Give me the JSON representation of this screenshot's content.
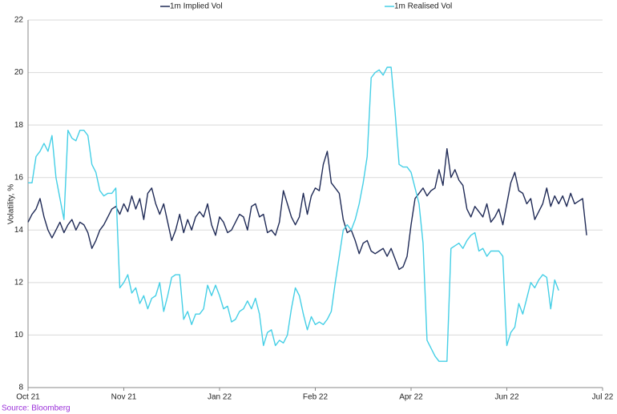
{
  "chart_data": {
    "type": "line",
    "y_label": "Volatility, %",
    "source": "Source: Bloomberg",
    "legend": "top",
    "grid": true,
    "ylim": [
      8,
      22
    ],
    "yticks": [
      8,
      10,
      12,
      14,
      16,
      18,
      20,
      22
    ],
    "categories": [
      "Oct 21",
      null,
      null,
      null,
      null,
      null,
      null,
      null,
      null,
      null,
      null,
      null,
      null,
      null,
      null,
      null,
      null,
      null,
      null,
      null,
      null,
      null,
      null,
      null,
      "Nov 21",
      null,
      null,
      null,
      null,
      null,
      null,
      null,
      null,
      null,
      null,
      null,
      null,
      null,
      null,
      null,
      null,
      null,
      null,
      null,
      null,
      null,
      null,
      null,
      "Jan 22",
      null,
      null,
      null,
      null,
      null,
      null,
      null,
      null,
      null,
      null,
      null,
      null,
      null,
      null,
      null,
      null,
      null,
      null,
      null,
      null,
      null,
      null,
      null,
      "Feb 22",
      null,
      null,
      null,
      null,
      null,
      null,
      null,
      null,
      null,
      null,
      null,
      null,
      null,
      null,
      null,
      null,
      null,
      null,
      null,
      null,
      null,
      null,
      null,
      "Apr 22",
      null,
      null,
      null,
      null,
      null,
      null,
      null,
      null,
      null,
      null,
      null,
      null,
      null,
      null,
      null,
      null,
      null,
      null,
      null,
      null,
      null,
      null,
      null,
      "Jun 22",
      null,
      null,
      null,
      null,
      null,
      null,
      null,
      null,
      null,
      null,
      null,
      null,
      null,
      null,
      null,
      null,
      null,
      null,
      null,
      null,
      null,
      null,
      null,
      "Jul 22"
    ],
    "series": [
      {
        "name": "1m Implied Vol",
        "color": "#1f2a56",
        "values": [
          14.3,
          14.6,
          14.8,
          15.2,
          14.5,
          14.0,
          13.7,
          14.0,
          14.3,
          13.9,
          14.2,
          14.4,
          14.0,
          14.3,
          14.2,
          13.9,
          13.3,
          13.6,
          14.0,
          14.2,
          14.5,
          14.8,
          14.9,
          14.6,
          15.0,
          14.7,
          15.3,
          14.8,
          15.2,
          14.4,
          15.4,
          15.6,
          15.0,
          14.6,
          15.0,
          14.3,
          13.6,
          14.0,
          14.6,
          13.9,
          14.4,
          14.0,
          14.5,
          14.7,
          14.5,
          15.0,
          14.2,
          13.8,
          14.5,
          14.3,
          13.9,
          14.0,
          14.3,
          14.6,
          14.5,
          14.0,
          14.9,
          15.0,
          14.5,
          14.6,
          13.9,
          14.0,
          13.8,
          14.3,
          15.5,
          15.0,
          14.5,
          14.2,
          14.5,
          15.4,
          14.6,
          15.3,
          15.6,
          15.5,
          16.5,
          17.0,
          15.8,
          15.6,
          15.4,
          14.4,
          13.9,
          14.0,
          13.6,
          13.1,
          13.5,
          13.6,
          13.2,
          13.1,
          13.2,
          13.3,
          13.0,
          13.3,
          12.9,
          12.5,
          12.6,
          13.0,
          14.2,
          15.2,
          15.4,
          15.6,
          15.3,
          15.5,
          15.6,
          16.3,
          15.7,
          17.1,
          16.0,
          16.3,
          15.9,
          15.7,
          14.8,
          14.5,
          14.9,
          14.7,
          14.5,
          15.0,
          14.3,
          14.5,
          14.8,
          14.2,
          15.0,
          15.8,
          16.2,
          15.5,
          15.4,
          15.0,
          15.2,
          14.4,
          14.7,
          15.0,
          15.6,
          14.9,
          15.3,
          15.0,
          15.3,
          14.9,
          15.4,
          15.0,
          15.1,
          15.2,
          13.8,
          null,
          null,
          null,
          null
        ]
      },
      {
        "name": "1m Realised Vol",
        "color": "#45cfe6",
        "values": [
          15.8,
          15.8,
          16.8,
          17.0,
          17.3,
          17.0,
          17.6,
          16.0,
          15.2,
          14.4,
          17.8,
          17.5,
          17.4,
          17.8,
          17.8,
          17.6,
          16.5,
          16.2,
          15.5,
          15.3,
          15.4,
          15.4,
          15.6,
          11.8,
          12.0,
          12.3,
          11.6,
          11.8,
          11.2,
          11.5,
          11.0,
          11.4,
          11.5,
          12.0,
          10.9,
          11.5,
          12.2,
          12.3,
          12.3,
          10.6,
          10.9,
          10.4,
          10.8,
          10.8,
          11.0,
          11.9,
          11.5,
          11.9,
          11.5,
          11.0,
          11.1,
          10.5,
          10.6,
          10.9,
          11.0,
          11.3,
          11.0,
          11.4,
          10.8,
          9.6,
          10.1,
          10.2,
          9.6,
          9.8,
          9.7,
          10.0,
          11.0,
          11.8,
          11.5,
          10.8,
          10.2,
          10.7,
          10.4,
          10.5,
          10.4,
          10.6,
          10.9,
          12.0,
          13.0,
          14.0,
          14.2,
          14.0,
          14.4,
          15.0,
          15.8,
          16.8,
          19.8,
          20.0,
          20.1,
          19.9,
          20.2,
          20.2,
          18.5,
          16.5,
          16.4,
          16.4,
          16.2,
          15.6,
          15.0,
          13.5,
          9.8,
          9.5,
          9.2,
          9.0,
          9.0,
          9.0,
          13.3,
          13.4,
          13.5,
          13.3,
          13.6,
          13.8,
          13.9,
          13.2,
          13.3,
          13.0,
          13.2,
          13.2,
          13.2,
          13.0,
          9.6,
          10.1,
          10.3,
          11.2,
          10.8,
          11.4,
          12.0,
          11.8,
          12.1,
          12.3,
          12.2,
          11.0,
          12.1,
          11.7,
          null,
          null,
          null,
          null,
          null,
          null,
          null,
          null,
          null,
          null,
          null
        ]
      }
    ]
  }
}
